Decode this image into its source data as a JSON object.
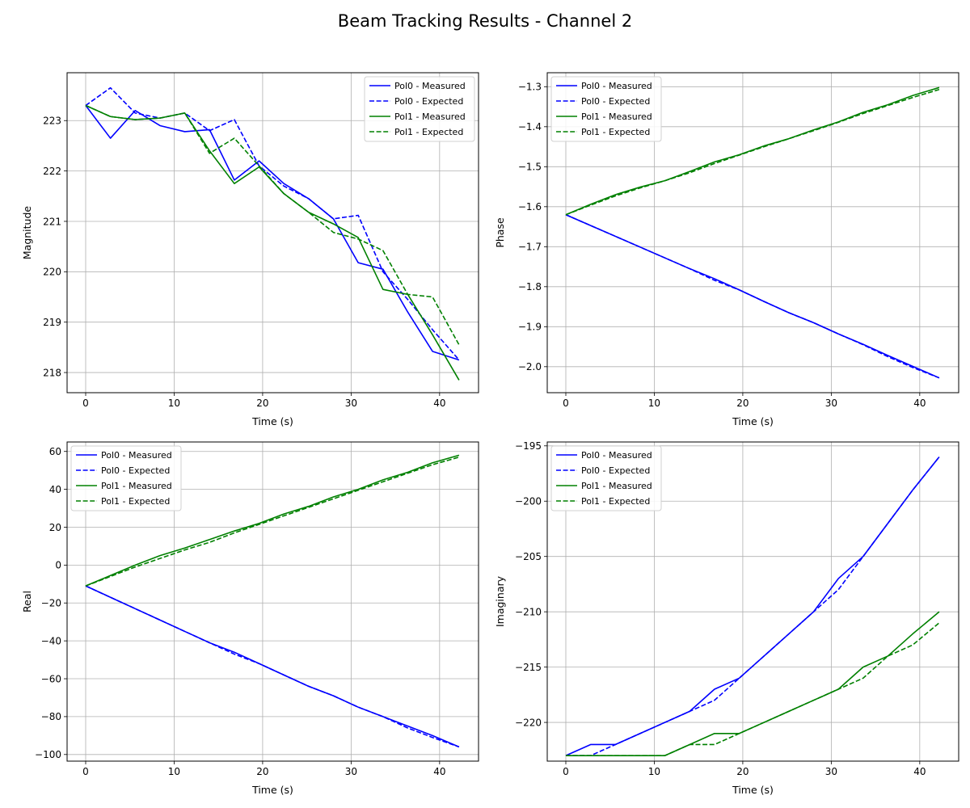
{
  "figure": {
    "title": "Beam Tracking Results - Channel 2"
  },
  "chart_data": [
    {
      "type": "line",
      "xlabel": "Time (s)",
      "ylabel": "Magnitude",
      "xlim": [
        -2.1,
        44.4
      ],
      "ylim": [
        217.6,
        223.95
      ],
      "xticks": [
        0,
        10,
        20,
        30,
        40
      ],
      "yticks": [
        218,
        219,
        220,
        221,
        222,
        223
      ],
      "ytick_labels": [
        "218",
        "219",
        "220",
        "221",
        "222",
        "223"
      ],
      "grid": true,
      "legend": "top-right",
      "x": [
        0,
        2.8,
        5.6,
        8.4,
        11.2,
        14.0,
        16.8,
        19.6,
        22.4,
        25.2,
        28.0,
        30.8,
        33.6,
        36.4,
        39.2,
        42.2
      ],
      "series": [
        {
          "name": "Pol0 - Measured",
          "color": "#0000ff",
          "style": "solid",
          "values": [
            223.3,
            222.65,
            223.2,
            222.9,
            222.78,
            222.82,
            221.82,
            222.2,
            221.75,
            221.45,
            221.05,
            220.18,
            220.05,
            219.2,
            218.42,
            218.25
          ]
        },
        {
          "name": "Pol0 - Expected",
          "color": "#0000ff",
          "style": "dashed",
          "values": [
            223.3,
            223.65,
            223.15,
            223.05,
            223.15,
            222.8,
            223.02,
            222.1,
            221.7,
            221.45,
            221.05,
            221.12,
            220.0,
            219.45,
            218.85,
            218.25
          ]
        },
        {
          "name": "Pol1 - Measured",
          "color": "#008000",
          "style": "solid",
          "values": [
            223.3,
            223.08,
            223.02,
            223.05,
            223.15,
            222.4,
            221.75,
            222.08,
            221.55,
            221.18,
            220.95,
            220.68,
            219.65,
            219.55,
            218.75,
            217.85
          ]
        },
        {
          "name": "Pol1 - Expected",
          "color": "#008000",
          "style": "dashed",
          "values": [
            223.3,
            223.08,
            223.02,
            223.05,
            223.15,
            222.35,
            222.65,
            222.1,
            221.55,
            221.18,
            220.78,
            220.65,
            220.42,
            219.55,
            219.5,
            218.55
          ]
        }
      ]
    },
    {
      "type": "line",
      "xlabel": "Time (s)",
      "ylabel": "Phase",
      "xlim": [
        -2.1,
        44.4
      ],
      "ylim": [
        -2.065,
        -1.265
      ],
      "xticks": [
        0,
        10,
        20,
        30,
        40
      ],
      "yticks": [
        -2.0,
        -1.9,
        -1.8,
        -1.7,
        -1.6,
        -1.5,
        -1.4,
        -1.3
      ],
      "ytick_labels": [
        "−2.0",
        "−1.9",
        "−1.8",
        "−1.7",
        "−1.6",
        "−1.5",
        "−1.4",
        "−1.3"
      ],
      "grid": true,
      "legend": "top-left",
      "x": [
        0,
        2.8,
        5.6,
        8.4,
        11.2,
        14.0,
        16.8,
        19.6,
        22.4,
        25.2,
        28.0,
        30.8,
        33.6,
        36.4,
        39.2,
        42.2
      ],
      "series": [
        {
          "name": "Pol0 - Measured",
          "color": "#0000ff",
          "style": "solid",
          "values": [
            -1.62,
            -1.647,
            -1.674,
            -1.701,
            -1.728,
            -1.755,
            -1.78,
            -1.808,
            -1.837,
            -1.865,
            -1.89,
            -1.918,
            -1.944,
            -1.972,
            -1.999,
            -2.028
          ]
        },
        {
          "name": "Pol0 - Expected",
          "color": "#0000ff",
          "style": "dashed",
          "values": [
            -1.62,
            -1.647,
            -1.674,
            -1.701,
            -1.728,
            -1.755,
            -1.784,
            -1.808,
            -1.837,
            -1.865,
            -1.89,
            -1.918,
            -1.945,
            -1.975,
            -2.002,
            -2.028
          ]
        },
        {
          "name": "Pol1 - Measured",
          "color": "#008000",
          "style": "solid",
          "values": [
            -1.62,
            -1.594,
            -1.57,
            -1.551,
            -1.535,
            -1.512,
            -1.488,
            -1.47,
            -1.448,
            -1.43,
            -1.408,
            -1.388,
            -1.364,
            -1.345,
            -1.322,
            -1.302
          ]
        },
        {
          "name": "Pol1 - Expected",
          "color": "#008000",
          "style": "dashed",
          "values": [
            -1.62,
            -1.596,
            -1.573,
            -1.553,
            -1.535,
            -1.515,
            -1.492,
            -1.471,
            -1.45,
            -1.43,
            -1.41,
            -1.389,
            -1.367,
            -1.347,
            -1.327,
            -1.307
          ]
        }
      ]
    },
    {
      "type": "line",
      "xlabel": "Time (s)",
      "ylabel": "Real",
      "xlim": [
        -2.1,
        44.4
      ],
      "ylim": [
        -103.5,
        65.0
      ],
      "xticks": [
        0,
        10,
        20,
        30,
        40
      ],
      "yticks": [
        -100,
        -80,
        -60,
        -40,
        -20,
        0,
        20,
        40,
        60
      ],
      "ytick_labels": [
        "−100",
        "−80",
        "−60",
        "−40",
        "−20",
        "0",
        "20",
        "40",
        "60"
      ],
      "grid": true,
      "legend": "top-left",
      "x": [
        0,
        2.8,
        5.6,
        8.4,
        11.2,
        14.0,
        16.8,
        19.6,
        22.4,
        25.2,
        28.0,
        30.8,
        33.6,
        36.4,
        39.2,
        42.2
      ],
      "series": [
        {
          "name": "Pol0 - Measured",
          "color": "#0000ff",
          "style": "solid",
          "values": [
            -11,
            -17,
            -23,
            -29,
            -35,
            -41,
            -46,
            -52,
            -58,
            -64,
            -69,
            -75,
            -80,
            -85,
            -90,
            -96
          ]
        },
        {
          "name": "Pol0 - Expected",
          "color": "#0000ff",
          "style": "dashed",
          "values": [
            -11,
            -17,
            -23,
            -29,
            -35,
            -41,
            -47,
            -52,
            -58,
            -64,
            -69,
            -75,
            -80,
            -86,
            -91,
            -96
          ]
        },
        {
          "name": "Pol1 - Measured",
          "color": "#008000",
          "style": "solid",
          "values": [
            -11,
            -5.5,
            0,
            5,
            9,
            13.5,
            18,
            22,
            27,
            31,
            36,
            40,
            45,
            49,
            54,
            58
          ]
        },
        {
          "name": "Pol1 - Expected",
          "color": "#008000",
          "style": "dashed",
          "values": [
            -11,
            -6,
            -1,
            3.5,
            8,
            12,
            17,
            21.5,
            26,
            30.5,
            35,
            39.5,
            44,
            48.5,
            53,
            57
          ]
        }
      ]
    },
    {
      "type": "line",
      "xlabel": "Time (s)",
      "ylabel": "Imaginary",
      "xlim": [
        -2.1,
        44.4
      ],
      "ylim": [
        -223.5,
        -194.65
      ],
      "xticks": [
        0,
        10,
        20,
        30,
        40
      ],
      "yticks": [
        -220,
        -215,
        -210,
        -205,
        -200,
        -195
      ],
      "ytick_labels": [
        "−220",
        "−215",
        "−210",
        "−205",
        "−200",
        "−195"
      ],
      "grid": true,
      "legend": "top-left",
      "x": [
        0,
        2.8,
        5.6,
        8.4,
        11.2,
        14.0,
        16.8,
        19.6,
        22.4,
        25.2,
        28.0,
        30.8,
        33.6,
        36.4,
        39.2,
        42.2
      ],
      "series": [
        {
          "name": "Pol0 - Measured",
          "color": "#0000ff",
          "style": "solid",
          "values": [
            -223,
            -222,
            -222,
            -221,
            -220,
            -219,
            -217,
            -216,
            -214,
            -212,
            -210,
            -207,
            -205,
            -202,
            -199,
            -196
          ]
        },
        {
          "name": "Pol0 - Expected",
          "color": "#0000ff",
          "style": "dashed",
          "values": [
            -223,
            -223,
            -222,
            -221,
            -220,
            -219,
            -218,
            -216,
            -214,
            -212,
            -210,
            -208,
            -205,
            -202,
            -199,
            -196
          ]
        },
        {
          "name": "Pol1 - Measured",
          "color": "#008000",
          "style": "solid",
          "values": [
            -223,
            -223,
            -223,
            -223,
            -223,
            -222,
            -221,
            -221,
            -220,
            -219,
            -218,
            -217,
            -215,
            -214,
            -212,
            -210
          ]
        },
        {
          "name": "Pol1 - Expected",
          "color": "#008000",
          "style": "dashed",
          "values": [
            -223,
            -223,
            -223,
            -223,
            -223,
            -222,
            -222,
            -221,
            -220,
            -219,
            -218,
            -217,
            -216,
            -214,
            -213,
            -211
          ]
        }
      ]
    }
  ]
}
